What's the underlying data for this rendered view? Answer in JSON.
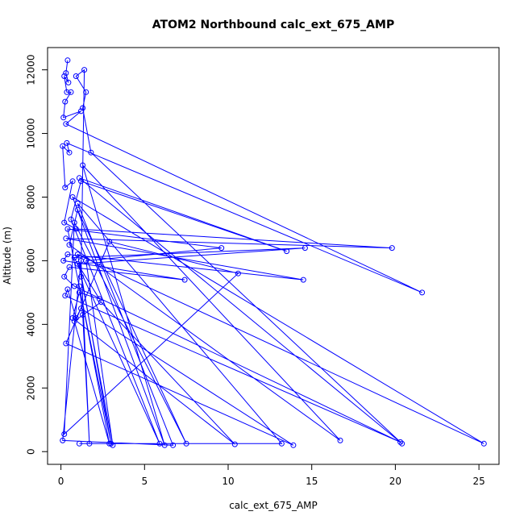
{
  "chart_data": {
    "type": "line",
    "title": "ATOM2 Northbound calc_ext_675_AMP",
    "xlabel": "calc_ext_675_AMP",
    "ylabel": "Altitude (m)",
    "xlim": [
      -0.8,
      26.2
    ],
    "ylim": [
      -400,
      12700
    ],
    "x_ticks": [
      0,
      5,
      10,
      15,
      20,
      25
    ],
    "y_ticks": [
      0,
      2000,
      4000,
      6000,
      8000,
      10000,
      12000
    ],
    "grid": false,
    "legend": "none",
    "colors": {
      "series": "#0000ff",
      "axis": "#000000"
    },
    "series": [
      {
        "points": [
          [
            0.4,
            12300
          ],
          [
            0.3,
            11900
          ],
          [
            0.45,
            11600
          ],
          [
            0.2,
            11800
          ],
          [
            0.35,
            11300
          ],
          [
            0.6,
            11300
          ],
          [
            0.25,
            11000
          ],
          [
            0.15,
            10500
          ],
          [
            1.2,
            10700
          ],
          [
            0.3,
            10300
          ],
          [
            21.6,
            5000
          ],
          [
            0.35,
            9700
          ],
          [
            0.5,
            9400
          ],
          [
            0.1,
            9600
          ],
          [
            0.25,
            8300
          ],
          [
            0.7,
            8500
          ],
          [
            0.2,
            7200
          ],
          [
            0.9,
            7000
          ],
          [
            19.8,
            6400
          ],
          [
            0.3,
            6700
          ],
          [
            14.5,
            5400
          ],
          [
            0.4,
            6200
          ],
          [
            0.15,
            6000
          ],
          [
            7.4,
            5400
          ],
          [
            0.5,
            5800
          ],
          [
            0.2,
            5500
          ],
          [
            0.8,
            5200
          ],
          [
            20.3,
            300
          ],
          [
            0.25,
            4900
          ],
          [
            0.4,
            5100
          ],
          [
            0.9,
            4200
          ],
          [
            1.2,
            4500
          ],
          [
            13.9,
            200
          ],
          [
            0.3,
            3400
          ],
          [
            2.9,
            6600
          ],
          [
            10.6,
            5600
          ],
          [
            0.2,
            550
          ],
          [
            0.8,
            7200
          ],
          [
            7.5,
            250
          ],
          [
            1.0,
            7600
          ],
          [
            0.5,
            6500
          ],
          [
            16.7,
            350
          ],
          [
            1.3,
            9000
          ],
          [
            6.2,
            200
          ],
          [
            0.7,
            8000
          ],
          [
            25.3,
            250
          ],
          [
            1.0,
            6200
          ],
          [
            3.0,
            250
          ],
          [
            0.4,
            7000
          ],
          [
            9.6,
            6400
          ],
          [
            1.5,
            6000
          ],
          [
            3.1,
            200
          ],
          [
            1.2,
            5500
          ],
          [
            1.4,
            12000
          ],
          [
            0.9,
            11800
          ],
          [
            1.5,
            11300
          ],
          [
            1.3,
            10800
          ],
          [
            1.8,
            9400
          ],
          [
            20.4,
            250
          ],
          [
            1.1,
            8600
          ],
          [
            13.5,
            6300
          ],
          [
            1.2,
            8500
          ],
          [
            0.6,
            7300
          ],
          [
            5.9,
            250
          ],
          [
            0.8,
            6100
          ],
          [
            14.6,
            6400
          ],
          [
            1.0,
            5900
          ],
          [
            2.3,
            4800
          ],
          [
            1.1,
            5000
          ],
          [
            0.7,
            4200
          ],
          [
            10.4,
            230
          ],
          [
            2.4,
            4700
          ],
          [
            0.8,
            4100
          ],
          [
            2.9,
            250
          ],
          [
            1.1,
            5200
          ],
          [
            1.3,
            4300
          ],
          [
            1.7,
            250
          ],
          [
            1.2,
            6000
          ],
          [
            0.1,
            350
          ],
          [
            6.7,
            200
          ],
          [
            1.0,
            7800
          ],
          [
            13.2,
            250
          ],
          [
            1.1,
            250
          ]
        ]
      }
    ]
  }
}
